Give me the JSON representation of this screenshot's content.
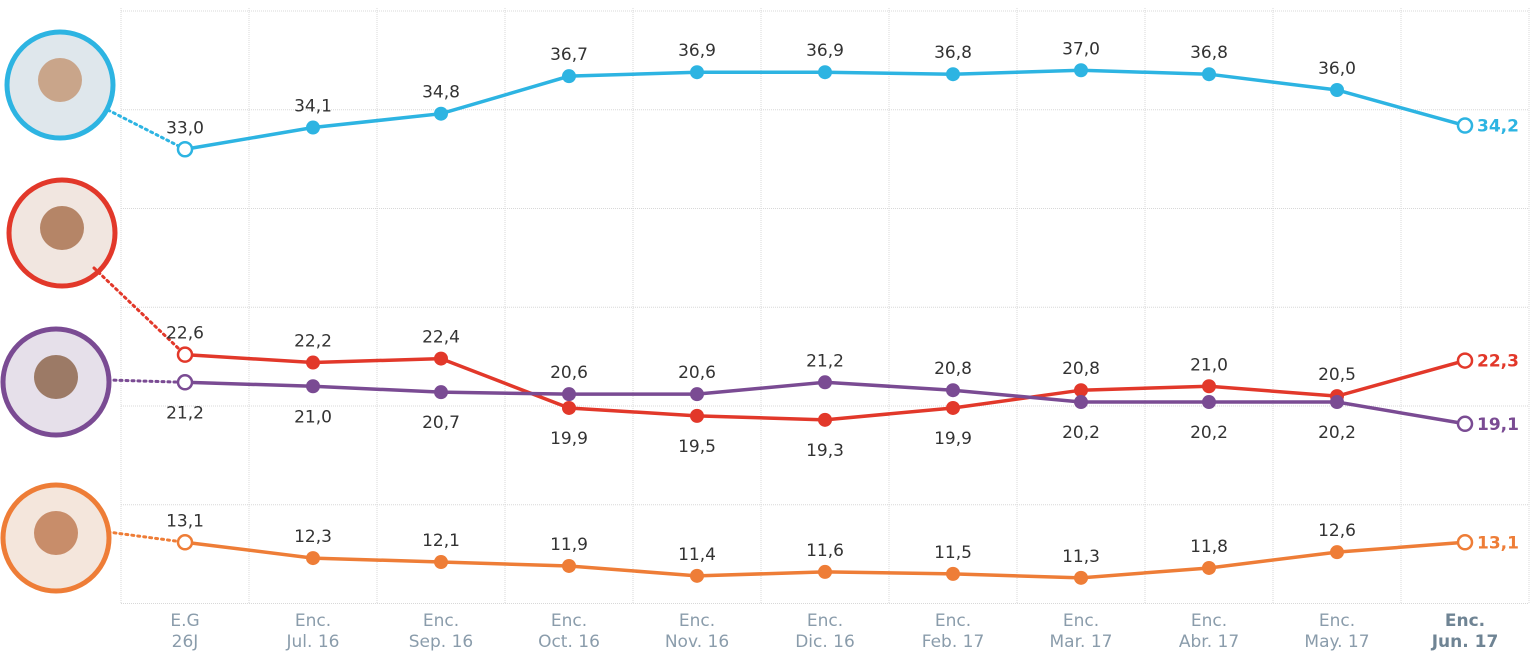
{
  "chart_data": {
    "type": "line",
    "categories": [
      "E.G\n26J",
      "Enc.\nJul. 16",
      "Enc.\nSep. 16",
      "Enc.\nOct. 16",
      "Enc.\nNov. 16",
      "Enc.\nDic. 16",
      "Enc.\nFeb. 17",
      "Enc.\nMar. 17",
      "Enc.\nAbr. 17",
      "Enc.\nMay. 17",
      "Enc.\nJun. 17"
    ],
    "series": [
      {
        "color": "#2db4e2",
        "values": [
          33.0,
          34.1,
          34.8,
          36.7,
          36.9,
          36.9,
          36.8,
          37.0,
          36.8,
          36.0,
          34.2
        ],
        "value_labels": [
          "33,0",
          "34,1",
          "34,8",
          "36,7",
          "36,9",
          "36,9",
          "36,8",
          "37,0",
          "36,8",
          "36,0",
          "34,2"
        ]
      },
      {
        "color": "#e2382a",
        "values": [
          22.6,
          22.2,
          22.4,
          19.9,
          19.5,
          19.3,
          19.9,
          20.8,
          21.0,
          20.5,
          22.3
        ],
        "value_labels": [
          "22,6",
          "22,2",
          "22,4",
          "19,9",
          "19,5",
          "19,3",
          "19,9",
          "20,8",
          "21,0",
          "20,5",
          "22,3"
        ]
      },
      {
        "color": "#7a4b93",
        "values": [
          21.2,
          21.0,
          20.7,
          20.6,
          20.6,
          21.2,
          20.8,
          20.2,
          20.2,
          20.2,
          19.1
        ],
        "value_labels": [
          "21,2",
          "21,0",
          "20,7",
          "20,6",
          "20,6",
          "21,2",
          "20,8",
          "20,2",
          "20,2",
          "20,2",
          "19,1"
        ]
      },
      {
        "color": "#ee7d37",
        "values": [
          13.1,
          12.3,
          12.1,
          11.9,
          11.4,
          11.6,
          11.5,
          11.3,
          11.8,
          12.6,
          13.1
        ],
        "value_labels": [
          "13,1",
          "12,3",
          "12,1",
          "11,9",
          "11,4",
          "11,6",
          "11,5",
          "11,3",
          "11,8",
          "12,6",
          "13,1"
        ]
      }
    ],
    "ylim": [
      10,
      40
    ],
    "yticks": [
      10,
      15,
      20,
      25,
      30,
      35,
      40
    ],
    "grid": true
  }
}
